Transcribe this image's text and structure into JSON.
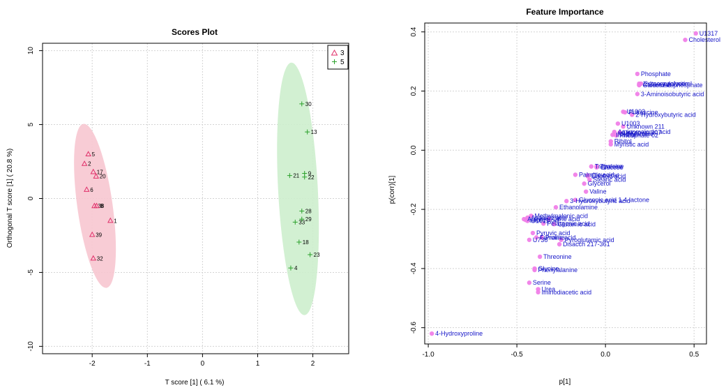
{
  "chart_data": [
    {
      "type": "scatter",
      "title": "Scores Plot",
      "xlabel": "T score [1] ( 6.1 %)",
      "ylabel": "Orthogonal T score [1] ( 20.8 %)",
      "xlim": [
        -2.9,
        2.65
      ],
      "ylim": [
        -10.5,
        10.5
      ],
      "xticks": [
        -2,
        -1,
        0,
        1,
        2
      ],
      "yticks": [
        -10,
        -5,
        0,
        5,
        10
      ],
      "grid": true,
      "legend_position": "top-right",
      "series": [
        {
          "name": "3",
          "marker": "triangle",
          "color": "#e0306a",
          "ellipse_color": "#f7c6d0",
          "points": [
            {
              "label": "5",
              "x": -2.07,
              "y": 3.0
            },
            {
              "label": "2",
              "x": -2.14,
              "y": 2.35
            },
            {
              "label": "17",
              "x": -1.98,
              "y": 1.8
            },
            {
              "label": "20",
              "x": -1.93,
              "y": 1.5
            },
            {
              "label": "6",
              "x": -2.1,
              "y": 0.6
            },
            {
              "label": "38",
              "x": -1.96,
              "y": -0.5
            },
            {
              "label": "8",
              "x": -1.92,
              "y": -0.5
            },
            {
              "label": "1",
              "x": -1.67,
              "y": -1.5
            },
            {
              "label": "39",
              "x": -2.0,
              "y": -2.45
            },
            {
              "label": "32",
              "x": -1.98,
              "y": -4.05
            }
          ]
        },
        {
          "name": "5",
          "marker": "plus",
          "color": "#2aa02a",
          "ellipse_color": "#cdeecd",
          "points": [
            {
              "label": "30",
              "x": 1.8,
              "y": 6.4
            },
            {
              "label": "13",
              "x": 1.9,
              "y": 4.5
            },
            {
              "label": "21",
              "x": 1.58,
              "y": 1.55
            },
            {
              "label": "9",
              "x": 1.85,
              "y": 1.7
            },
            {
              "label": "22",
              "x": 1.85,
              "y": 1.45
            },
            {
              "label": "28",
              "x": 1.8,
              "y": -0.85
            },
            {
              "label": "29",
              "x": 1.8,
              "y": -1.4
            },
            {
              "label": "33",
              "x": 1.68,
              "y": -1.6
            },
            {
              "label": "18",
              "x": 1.75,
              "y": -2.95
            },
            {
              "label": "23",
              "x": 1.95,
              "y": -3.8
            },
            {
              "label": "4",
              "x": 1.6,
              "y": -4.7
            }
          ]
        }
      ],
      "ellipses": [
        {
          "series": "3",
          "cx": -1.95,
          "cy": -0.5,
          "rx": 0.32,
          "ry": 5.6,
          "angle": -8
        },
        {
          "series": "5",
          "cx": 1.73,
          "cy": 0.65,
          "rx": 0.36,
          "ry": 8.55,
          "angle": -3
        }
      ]
    },
    {
      "type": "scatter",
      "title": "Feature Importance",
      "xlabel": "p[1]",
      "ylabel": "p(corr)[1]",
      "xlim": [
        -1.02,
        0.57
      ],
      "ylim": [
        -0.655,
        0.43
      ],
      "xticks": [
        -1.0,
        -0.5,
        0.0,
        0.5
      ],
      "xtick_labels": [
        "-1.0",
        "-0.5",
        "0.0",
        "0.5"
      ],
      "yticks": [
        -0.6,
        -0.4,
        -0.2,
        0.0,
        0.2,
        0.4
      ],
      "ytick_labels": [
        "-0.6",
        "-0.4",
        "-0.2",
        "0.0",
        "0.2",
        "0.4"
      ],
      "grid": true,
      "marker_color": "#f080e8",
      "points": [
        {
          "label": "U1317",
          "x": 0.51,
          "y": 0.395
        },
        {
          "label": "Cholesterol",
          "x": 0.45,
          "y": 0.373
        },
        {
          "label": "Phosphate",
          "x": 0.18,
          "y": 0.258
        },
        {
          "label": "1-stearoylglycerol",
          "x": 0.19,
          "y": 0.225
        },
        {
          "label": "2-lmonopalmitin",
          "x": 0.2,
          "y": 0.225
        },
        {
          "label": "Galactose",
          "x": 0.19,
          "y": 0.22
        },
        {
          "label": "Glucose-6-phosphate",
          "x": 0.19,
          "y": 0.22
        },
        {
          "label": "3-Aminoisobutyric acid",
          "x": 0.18,
          "y": 0.19
        },
        {
          "label": "U1003",
          "x": 0.1,
          "y": 0.13
        },
        {
          "label": "Putrescine",
          "x": 0.11,
          "y": 0.128
        },
        {
          "label": "2-Hydroxybutyric acid",
          "x": 0.15,
          "y": 0.12
        },
        {
          "label": "U1003",
          "x": 0.07,
          "y": 0.09
        },
        {
          "label": "Unknown 211",
          "x": 0.1,
          "y": 0.08
        },
        {
          "label": "Unknown 307",
          "x": 0.08,
          "y": 0.06
        },
        {
          "label": "Aminomalonic acid",
          "x": 0.05,
          "y": 0.062
        },
        {
          "label": "Methylamine",
          "x": 0.05,
          "y": 0.055
        },
        {
          "label": "Inositol",
          "x": 0.04,
          "y": 0.052
        },
        {
          "label": "Phosphate 02",
          "x": 0.06,
          "y": 0.05
        },
        {
          "label": "Ribitol",
          "x": 0.03,
          "y": 0.03
        },
        {
          "label": "Myristic acid",
          "x": 0.03,
          "y": 0.02
        },
        {
          "label": "Trehalose",
          "x": -0.08,
          "y": -0.055
        },
        {
          "label": "Tyrosine",
          "x": -0.05,
          "y": -0.055
        },
        {
          "label": "Glucose",
          "x": -0.05,
          "y": -0.058
        },
        {
          "label": "Palmitic acid",
          "x": -0.17,
          "y": -0.083
        },
        {
          "label": "Oleic acid",
          "x": -0.1,
          "y": -0.085
        },
        {
          "label": "Linoleic acid",
          "x": -0.1,
          "y": -0.088
        },
        {
          "label": "Stearic acid",
          "x": -0.09,
          "y": -0.1
        },
        {
          "label": "Glycerol",
          "x": -0.12,
          "y": -0.113
        },
        {
          "label": "Valine",
          "x": -0.11,
          "y": -0.14
        },
        {
          "label": "3-Hydroxybutyric acid",
          "x": -0.22,
          "y": -0.172
        },
        {
          "label": "Gluconic acid 1,4-lactone",
          "x": -0.17,
          "y": -0.168
        },
        {
          "label": "Ethanolamine",
          "x": -0.28,
          "y": -0.193
        },
        {
          "label": "Methylmalonic acid",
          "x": -0.42,
          "y": -0.222
        },
        {
          "label": "Aspartic acid",
          "x": -0.44,
          "y": -0.228
        },
        {
          "label": "Alanine",
          "x": -0.46,
          "y": -0.233
        },
        {
          "label": "Lactic acid",
          "x": -0.45,
          "y": -0.236
        },
        {
          "label": "U1011",
          "x": -0.44,
          "y": -0.239
        },
        {
          "label": "Citric acid",
          "x": -0.32,
          "y": -0.233
        },
        {
          "label": "Pelargonic acid",
          "x": -0.35,
          "y": -0.248
        },
        {
          "label": "Glutamic acid",
          "x": -0.29,
          "y": -0.25
        },
        {
          "label": "Pyruvic acid",
          "x": -0.41,
          "y": -0.28
        },
        {
          "label": "Fumaric acid",
          "x": -0.39,
          "y": -0.295
        },
        {
          "label": "Proline",
          "x": -0.36,
          "y": -0.295
        },
        {
          "label": "U736",
          "x": -0.43,
          "y": -0.303
        },
        {
          "label": "Pyroglutamic acid",
          "x": -0.25,
          "y": -0.303
        },
        {
          "label": "Disacch 217-361",
          "x": -0.26,
          "y": -0.318
        },
        {
          "label": "Threonine",
          "x": -0.37,
          "y": -0.36
        },
        {
          "label": "Glycine",
          "x": -0.4,
          "y": -0.4
        },
        {
          "label": "Phenylalanine",
          "x": -0.4,
          "y": -0.405
        },
        {
          "label": "Serine",
          "x": -0.43,
          "y": -0.448
        },
        {
          "label": "Urea",
          "x": -0.38,
          "y": -0.47
        },
        {
          "label": "Iminodiacetic acid",
          "x": -0.38,
          "y": -0.48
        },
        {
          "label": "4-Hydroxyproline",
          "x": -0.98,
          "y": -0.62
        }
      ]
    }
  ]
}
